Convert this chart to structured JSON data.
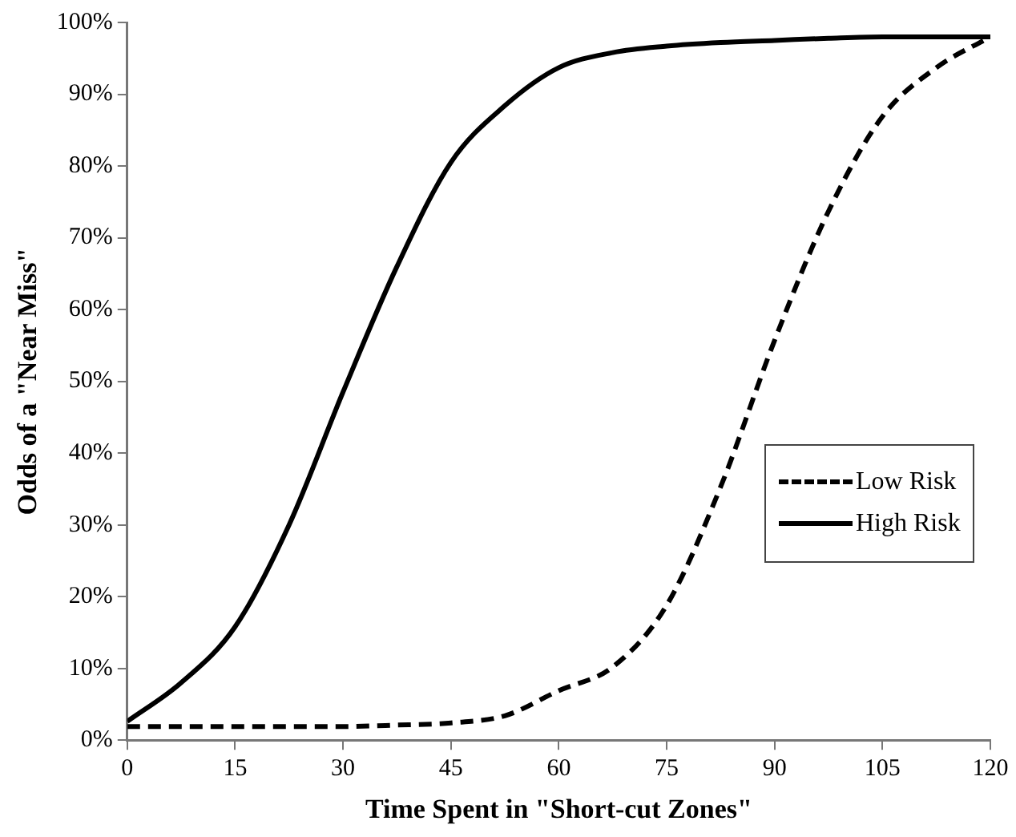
{
  "chart_data": {
    "type": "line",
    "xlabel": "Time Spent in \"Short-cut Zones\"",
    "ylabel": "Odds of a \"Near Miss\"",
    "x": [
      0,
      7.5,
      15,
      22.5,
      30,
      37.5,
      45,
      52.5,
      60,
      67.5,
      75,
      82.5,
      90,
      97.5,
      105,
      112.5,
      120
    ],
    "series": [
      {
        "name": "Low Risk",
        "color": "#000000",
        "line_style": "dashed",
        "values": [
          1.9,
          1.9,
          1.9,
          1.9,
          1.9,
          2.1,
          2.4,
          3.4,
          6.9,
          10.2,
          18.8,
          35.3,
          55.7,
          73.7,
          86.9,
          93.7,
          98
        ]
      },
      {
        "name": "High Risk",
        "color": "#000000",
        "line_style": "solid",
        "values": [
          2.6,
          8,
          15.8,
          30,
          48.5,
          66,
          80.5,
          88.4,
          93.7,
          95.8,
          96.7,
          97.2,
          97.5,
          97.8,
          98,
          98,
          98
        ]
      }
    ],
    "xlim": [
      0,
      120
    ],
    "xticks": [
      0,
      15,
      30,
      45,
      60,
      75,
      90,
      105,
      120
    ],
    "ylim": [
      0,
      100
    ],
    "yticks": [
      {
        "value": 0,
        "label": "0%"
      },
      {
        "value": 10,
        "label": "10%"
      },
      {
        "value": 20,
        "label": "20%"
      },
      {
        "value": 30,
        "label": "30%"
      },
      {
        "value": 40,
        "label": "40%"
      },
      {
        "value": 50,
        "label": "50%"
      },
      {
        "value": 60,
        "label": "60%"
      },
      {
        "value": 70,
        "label": "70%"
      },
      {
        "value": 80,
        "label": "80%"
      },
      {
        "value": 90,
        "label": "90%"
      },
      {
        "value": 100,
        "label": "100%"
      }
    ],
    "grid": false,
    "legend": "right",
    "marker": "none"
  }
}
